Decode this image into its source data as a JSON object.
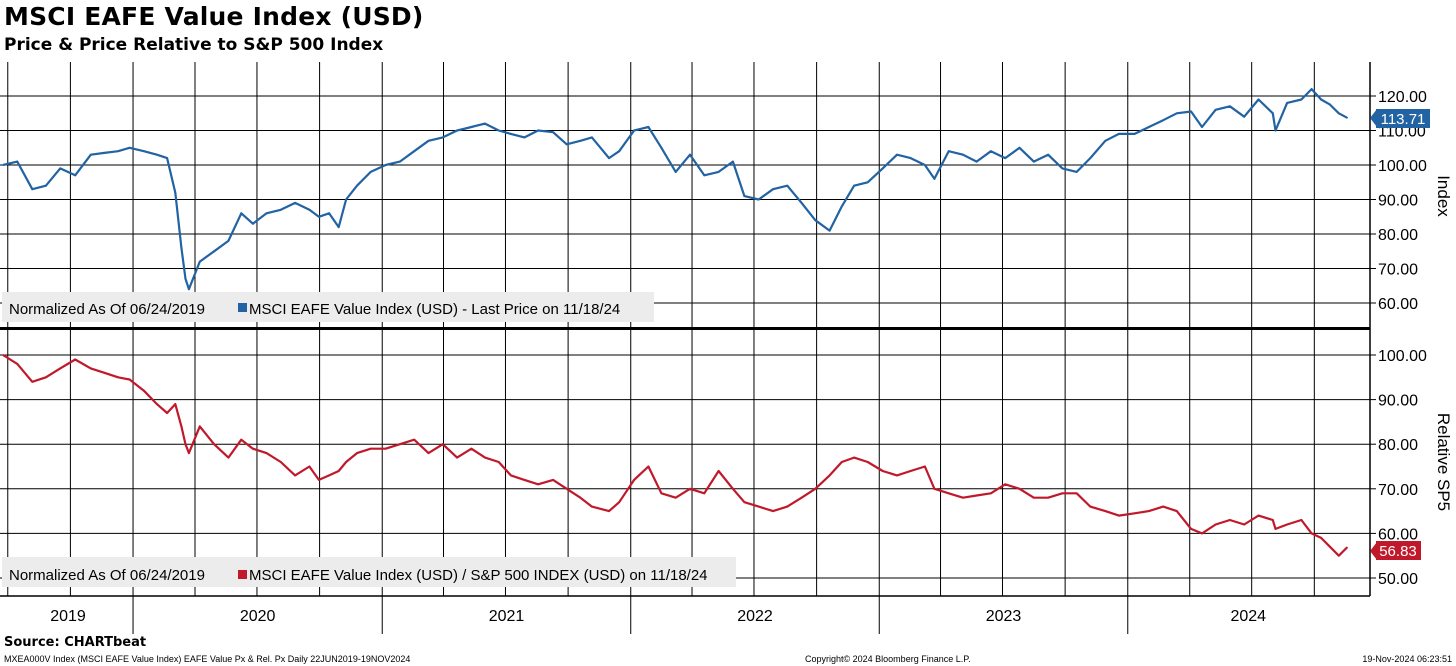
{
  "header": {
    "title": "MSCI EAFE Value Index (USD)",
    "subtitle": "Price & Price Relative to S&P 500 Index"
  },
  "footer": {
    "source": "Source: CHARTbeat",
    "description": "MXEA000V Index (MSCI EAFE Value Index) EAFE Value Px & Rel. Px  Daily 22JUN2019-19NOV2024",
    "copyright": "Copyright© 2024 Bloomberg Finance L.P.",
    "timestamp": "19-Nov-2024 06:23:51"
  },
  "colors": {
    "price_line": "#2163a3",
    "relative_line": "#c0192b",
    "grid": "#000000",
    "legend_bg": "#ececec"
  },
  "chart_data": [
    {
      "type": "line",
      "ylabel": "Index",
      "ylim": [
        55,
        125
      ],
      "yticks": [
        "60.00",
        "70.00",
        "80.00",
        "90.00",
        "100.00",
        "110.00",
        "120.00"
      ],
      "last_value_label": "113.71",
      "legend": {
        "note": "Normalized As Of 06/24/2019",
        "series_label": "MSCI EAFE Value Index (USD) - Last Price on 11/18/24"
      },
      "series": [
        {
          "x": [
            "2019-06-24",
            "2019-07-15",
            "2019-08-06",
            "2019-08-26",
            "2019-09-16",
            "2019-10-08",
            "2019-10-31",
            "2019-11-20",
            "2019-12-10",
            "2019-12-27",
            "2020-01-17",
            "2020-02-05",
            "2020-02-20",
            "2020-03-03",
            "2020-03-12",
            "2020-03-18",
            "2020-03-23",
            "2020-04-08",
            "2020-04-29",
            "2020-05-20",
            "2020-06-08",
            "2020-06-25",
            "2020-07-15",
            "2020-08-05",
            "2020-08-26",
            "2020-09-16",
            "2020-09-30",
            "2020-10-15",
            "2020-10-29",
            "2020-11-09",
            "2020-11-25",
            "2020-12-15",
            "2021-01-06",
            "2021-01-27",
            "2021-02-17",
            "2021-03-10",
            "2021-03-31",
            "2021-04-21",
            "2021-05-12",
            "2021-06-01",
            "2021-06-21",
            "2021-07-09",
            "2021-07-29",
            "2021-08-18",
            "2021-09-09",
            "2021-09-29",
            "2021-10-19",
            "2021-11-05",
            "2021-11-30",
            "2021-12-15",
            "2022-01-06",
            "2022-01-27",
            "2022-02-15",
            "2022-03-08",
            "2022-03-29",
            "2022-04-19",
            "2022-05-10",
            "2022-05-31",
            "2022-06-17",
            "2022-07-08",
            "2022-07-29",
            "2022-08-19",
            "2022-09-09",
            "2022-09-29",
            "2022-10-20",
            "2022-11-07",
            "2022-11-25",
            "2022-12-15",
            "2023-01-06",
            "2023-01-27",
            "2023-02-16",
            "2023-03-09",
            "2023-03-23",
            "2023-04-13",
            "2023-05-04",
            "2023-05-24",
            "2023-06-14",
            "2023-07-05",
            "2023-07-26",
            "2023-08-16",
            "2023-09-06",
            "2023-09-27",
            "2023-10-18",
            "2023-11-07",
            "2023-11-29",
            "2023-12-19",
            "2024-01-11",
            "2024-02-01",
            "2024-02-22",
            "2024-03-13",
            "2024-04-03",
            "2024-04-19",
            "2024-05-09",
            "2024-05-30",
            "2024-06-20",
            "2024-07-11",
            "2024-08-01",
            "2024-08-05",
            "2024-08-22",
            "2024-09-12",
            "2024-09-27",
            "2024-10-11",
            "2024-10-24",
            "2024-11-06",
            "2024-11-18"
          ],
          "y": [
            100.0,
            101.0,
            93.0,
            94.0,
            99.0,
            97.0,
            103.0,
            103.5,
            104.0,
            105.0,
            104.0,
            103.0,
            102.0,
            92.0,
            76.0,
            67.0,
            64.0,
            72.0,
            75.0,
            78.0,
            86.0,
            83.0,
            86.0,
            87.0,
            89.0,
            87.0,
            85.0,
            86.0,
            82.0,
            90.0,
            94.0,
            98.0,
            100.0,
            101.0,
            104.0,
            107.0,
            108.0,
            110.0,
            111.0,
            112.0,
            110.0,
            109.0,
            108.0,
            110.0,
            109.5,
            106.0,
            107.0,
            108.0,
            102.0,
            104.0,
            110.0,
            111.0,
            105.0,
            98.0,
            103.0,
            97.0,
            98.0,
            101.0,
            91.0,
            90.0,
            93.0,
            94.0,
            89.0,
            84.0,
            81.0,
            88.0,
            94.0,
            95.0,
            99.0,
            103.0,
            102.0,
            100.0,
            96.0,
            104.0,
            103.0,
            101.0,
            104.0,
            102.0,
            105.0,
            101.0,
            103.0,
            99.0,
            98.0,
            102.0,
            107.0,
            109.0,
            109.0,
            111.0,
            113.0,
            115.0,
            115.5,
            111.0,
            116.0,
            117.0,
            114.0,
            119.0,
            115.0,
            110.0,
            118.0,
            119.0,
            122.0,
            119.0,
            117.5,
            115.0,
            113.71
          ]
        }
      ]
    },
    {
      "type": "line",
      "ylabel": "Relative SP5",
      "ylim": [
        47,
        103
      ],
      "yticks": [
        "50.00",
        "60.00",
        "70.00",
        "80.00",
        "90.00",
        "100.00"
      ],
      "last_value_label": "56.83",
      "legend": {
        "note": "Normalized As Of 06/24/2019",
        "series_label": "MSCI EAFE Value Index (USD) / S&P 500 INDEX (USD) on 11/18/24"
      },
      "series": [
        {
          "x": [
            "2019-06-24",
            "2019-07-15",
            "2019-08-06",
            "2019-08-26",
            "2019-09-16",
            "2019-10-08",
            "2019-10-31",
            "2019-11-20",
            "2019-12-10",
            "2019-12-27",
            "2020-01-17",
            "2020-02-05",
            "2020-02-20",
            "2020-03-03",
            "2020-03-12",
            "2020-03-18",
            "2020-03-23",
            "2020-04-08",
            "2020-04-29",
            "2020-05-20",
            "2020-06-08",
            "2020-06-25",
            "2020-07-15",
            "2020-08-05",
            "2020-08-26",
            "2020-09-16",
            "2020-09-30",
            "2020-10-15",
            "2020-10-29",
            "2020-11-09",
            "2020-11-25",
            "2020-12-15",
            "2021-01-06",
            "2021-01-27",
            "2021-02-17",
            "2021-03-10",
            "2021-03-31",
            "2021-04-21",
            "2021-05-12",
            "2021-06-01",
            "2021-06-21",
            "2021-07-09",
            "2021-07-29",
            "2021-08-18",
            "2021-09-09",
            "2021-09-29",
            "2021-10-19",
            "2021-11-05",
            "2021-11-30",
            "2021-12-15",
            "2022-01-06",
            "2022-01-27",
            "2022-02-15",
            "2022-03-08",
            "2022-03-29",
            "2022-04-19",
            "2022-05-10",
            "2022-05-31",
            "2022-06-17",
            "2022-07-08",
            "2022-07-29",
            "2022-08-19",
            "2022-09-09",
            "2022-09-29",
            "2022-10-20",
            "2022-11-07",
            "2022-11-25",
            "2022-12-15",
            "2023-01-06",
            "2023-01-27",
            "2023-02-16",
            "2023-03-09",
            "2023-03-23",
            "2023-04-13",
            "2023-05-04",
            "2023-05-24",
            "2023-06-14",
            "2023-07-05",
            "2023-07-26",
            "2023-08-16",
            "2023-09-06",
            "2023-09-27",
            "2023-10-18",
            "2023-11-07",
            "2023-11-29",
            "2023-12-19",
            "2024-01-11",
            "2024-02-01",
            "2024-02-22",
            "2024-03-13",
            "2024-04-03",
            "2024-04-19",
            "2024-05-09",
            "2024-05-30",
            "2024-06-20",
            "2024-07-11",
            "2024-08-01",
            "2024-08-05",
            "2024-08-22",
            "2024-09-12",
            "2024-09-27",
            "2024-10-11",
            "2024-10-24",
            "2024-11-06",
            "2024-11-18"
          ],
          "y": [
            100.0,
            98.0,
            94.0,
            95.0,
            97.0,
            99.0,
            97.0,
            96.0,
            95.0,
            94.5,
            92.0,
            89.0,
            87.0,
            89.0,
            84.0,
            80.0,
            78.0,
            84.0,
            80.0,
            77.0,
            81.0,
            79.0,
            78.0,
            76.0,
            73.0,
            75.0,
            72.0,
            73.0,
            74.0,
            76.0,
            78.0,
            79.0,
            79.0,
            80.0,
            81.0,
            78.0,
            80.0,
            77.0,
            79.0,
            77.0,
            76.0,
            73.0,
            72.0,
            71.0,
            72.0,
            70.0,
            68.0,
            66.0,
            65.0,
            67.0,
            72.0,
            75.0,
            69.0,
            68.0,
            70.0,
            69.0,
            74.0,
            70.0,
            67.0,
            66.0,
            65.0,
            66.0,
            68.0,
            70.0,
            73.0,
            76.0,
            77.0,
            76.0,
            74.0,
            73.0,
            74.0,
            75.0,
            70.0,
            69.0,
            68.0,
            68.5,
            69.0,
            71.0,
            70.0,
            68.0,
            68.0,
            69.0,
            69.0,
            66.0,
            65.0,
            64.0,
            64.5,
            65.0,
            66.0,
            65.0,
            61.0,
            60.0,
            62.0,
            63.0,
            62.0,
            64.0,
            63.0,
            61.0,
            62.0,
            63.0,
            60.0,
            59.0,
            57.0,
            55.0,
            56.83
          ]
        }
      ]
    }
  ],
  "xaxis": {
    "year_labels": [
      "2019",
      "2020",
      "2021",
      "2022",
      "2023",
      "2024"
    ]
  }
}
